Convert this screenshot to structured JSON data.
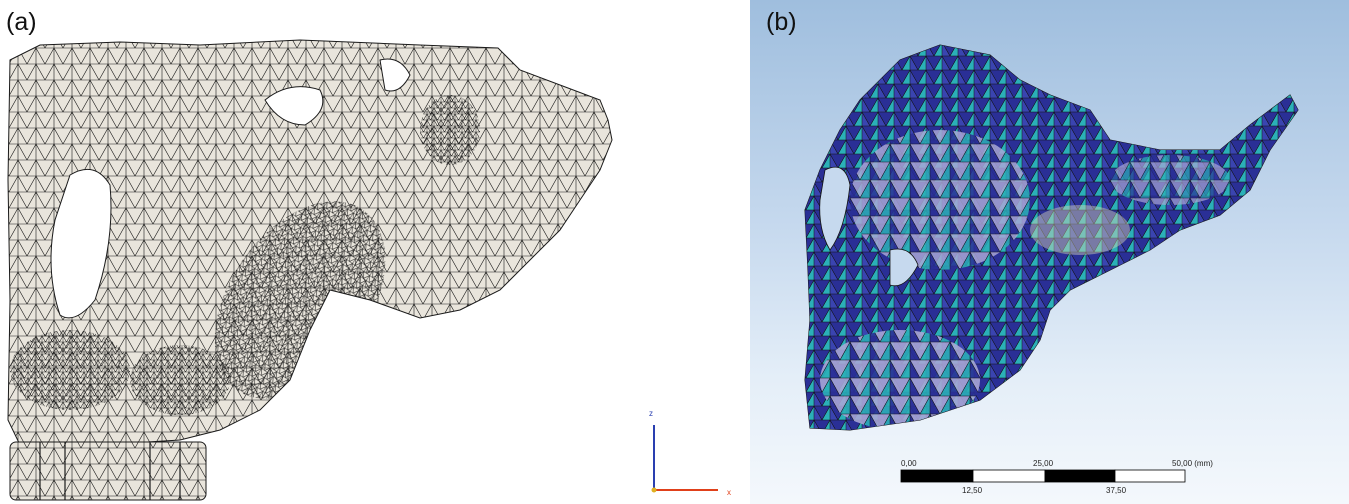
{
  "panels": {
    "a": {
      "label": "(a)"
    },
    "b": {
      "label": "(b)"
    }
  },
  "axis_triad": {
    "z_label": "z",
    "x_label": "x"
  },
  "scale_bar": {
    "top_labels": [
      "0,00",
      "25,00",
      "50,00 (mm)"
    ],
    "bottom_labels": [
      "12,50",
      "37,50"
    ]
  },
  "colors": {
    "mesh_a_fill": "#e9e5dc",
    "mesh_a_lines": "#1a1a1a",
    "mesh_b_dark_blue": "#2a2f96",
    "mesh_b_teal": "#2bb0b8",
    "mesh_b_lavender": "#a8a6d6",
    "mesh_b_cream": "#d8d6b8",
    "background_b_top": "#9fbede",
    "axis_z": "#2a3fb0",
    "axis_x": "#e0401a"
  }
}
